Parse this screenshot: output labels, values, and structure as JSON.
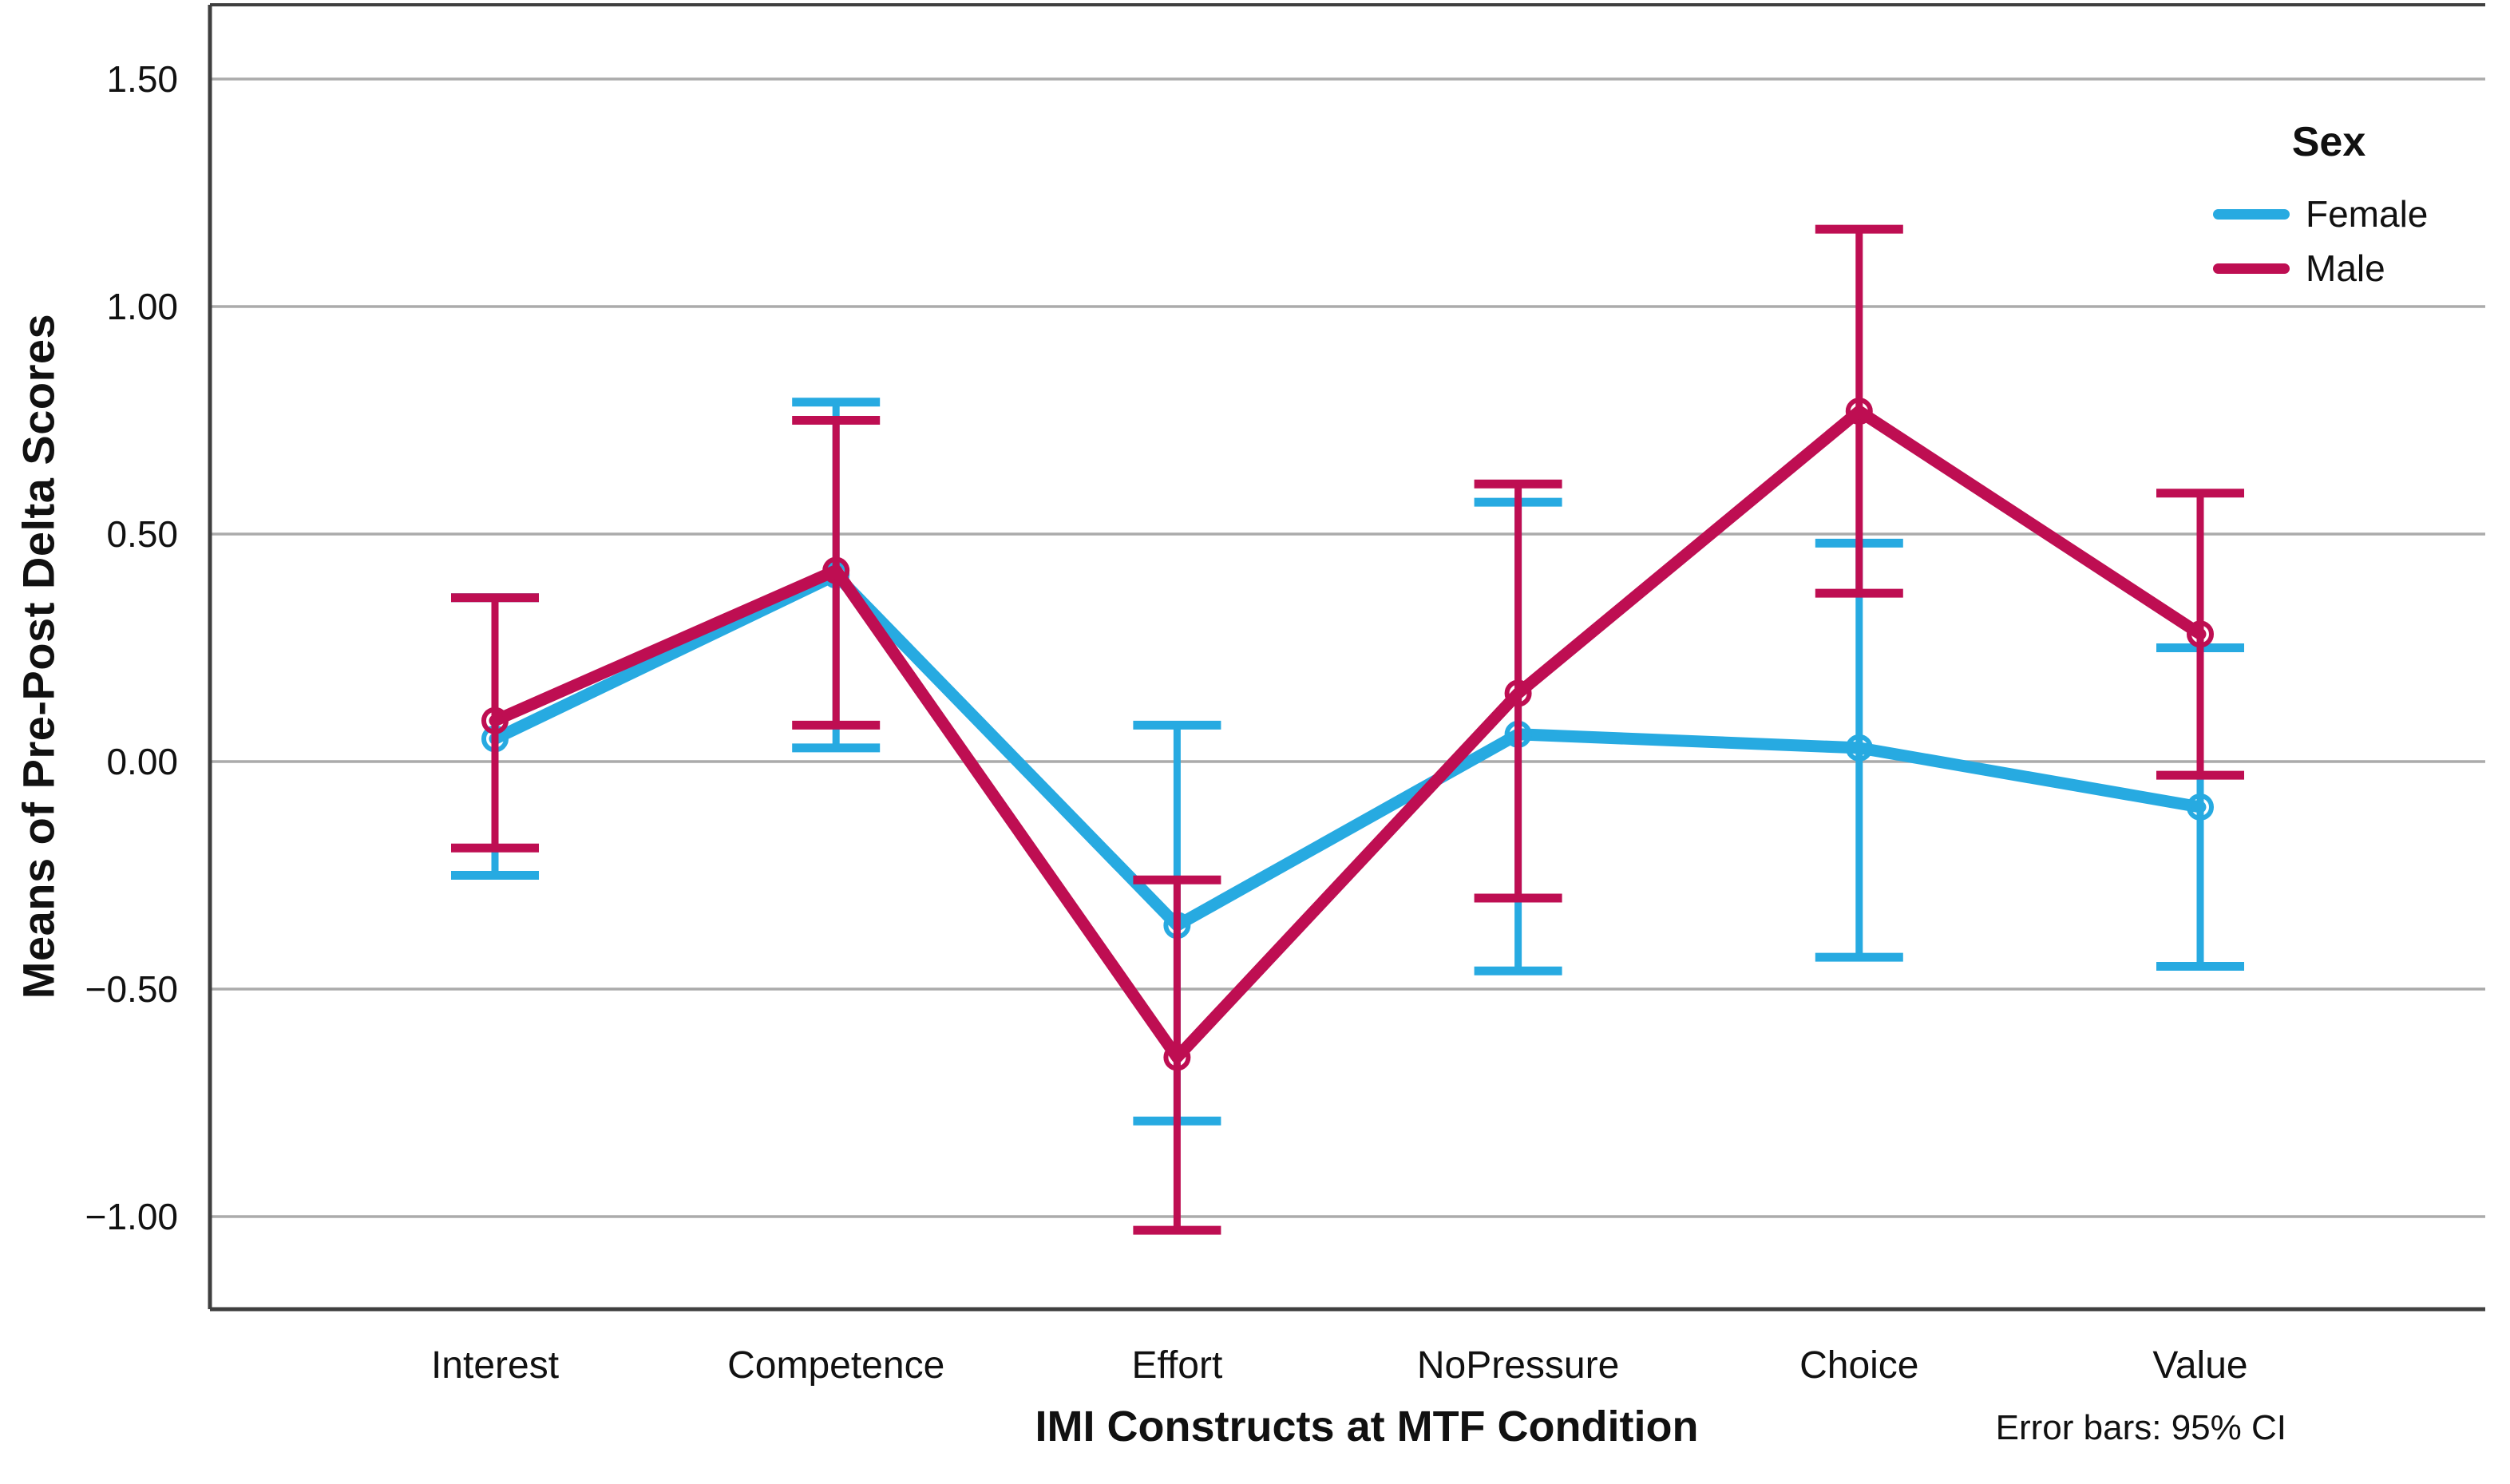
{
  "figure": {
    "y_axis_title": "Means of Pre-Post Delta Scores",
    "x_axis_title": "IMI Constructs at MTF Condition",
    "legend_title": "Sex",
    "footnote": "Error bars: 95% CI"
  },
  "chart_data": {
    "type": "line",
    "title": "",
    "xlabel": "IMI Constructs at MTF Condition",
    "ylabel": "Means of Pre-Post Delta Scores",
    "categories": [
      "Interest",
      "Competence",
      "Effort",
      "NoPressure",
      "Choice",
      "Value"
    ],
    "y_ticks": [
      1.5,
      1.0,
      0.5,
      0.0,
      -0.5,
      -1.0
    ],
    "y_tick_labels": [
      "1.50",
      "1.00",
      "0.50",
      "0.00",
      "−0.50",
      "−1.00"
    ],
    "ylim": [
      -1.2,
      1.66
    ],
    "grid": true,
    "gridline_color": "#ababab",
    "frame_color": "#3f3f3f",
    "legend_position": "top-right",
    "error_bars": "95% CI",
    "series": [
      {
        "name": "Female",
        "color": "#27AAE1",
        "means": [
          0.05,
          0.41,
          -0.36,
          0.06,
          0.03,
          -0.1
        ],
        "ci_low": [
          -0.25,
          0.03,
          -0.79,
          -0.46,
          -0.43,
          -0.45
        ],
        "ci_high": [
          0.36,
          0.79,
          0.08,
          0.57,
          0.48,
          0.25
        ]
      },
      {
        "name": "Male",
        "color": "#BE0E52",
        "means": [
          0.09,
          0.42,
          -0.65,
          0.15,
          0.77,
          0.28
        ],
        "ci_low": [
          -0.19,
          0.08,
          -1.03,
          -0.3,
          0.37,
          -0.03
        ],
        "ci_high": [
          0.36,
          0.75,
          -0.26,
          0.61,
          1.17,
          0.59
        ]
      }
    ]
  }
}
